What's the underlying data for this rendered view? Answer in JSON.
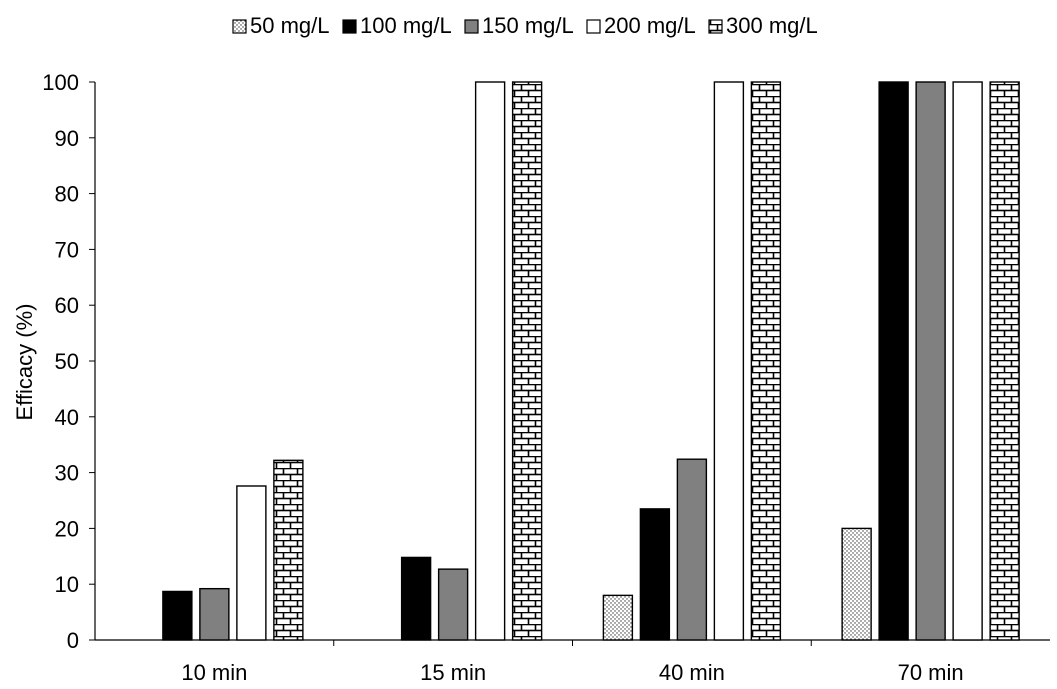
{
  "chart_data": {
    "type": "bar",
    "categories": [
      "10 min",
      "15 min",
      "40 min",
      "70 min"
    ],
    "series": [
      {
        "name": "50 mg/L",
        "values": [
          0,
          0,
          8,
          20
        ],
        "pattern": "dots"
      },
      {
        "name": "100 mg/L",
        "values": [
          8.7,
          14.8,
          23.5,
          100
        ],
        "pattern": "black"
      },
      {
        "name": "150 mg/L",
        "values": [
          9.2,
          12.7,
          32.4,
          100
        ],
        "pattern": "gray"
      },
      {
        "name": "200 mg/L",
        "values": [
          27.6,
          100,
          100,
          100
        ],
        "pattern": "white"
      },
      {
        "name": "300 mg/L",
        "values": [
          32.2,
          100,
          100,
          100
        ],
        "pattern": "brick"
      }
    ],
    "title": "",
    "xlabel": "",
    "ylabel": "Efficacy (%)",
    "ylim": [
      0,
      100
    ],
    "yticks": [
      "0",
      "10",
      "20",
      "30",
      "40",
      "50",
      "60",
      "70",
      "80",
      "90",
      "100"
    ],
    "grid": false,
    "legend_position": "top"
  },
  "colors": {
    "black": "#000000",
    "gray": "#808080",
    "white": "#ffffff",
    "dots": "#555555"
  }
}
